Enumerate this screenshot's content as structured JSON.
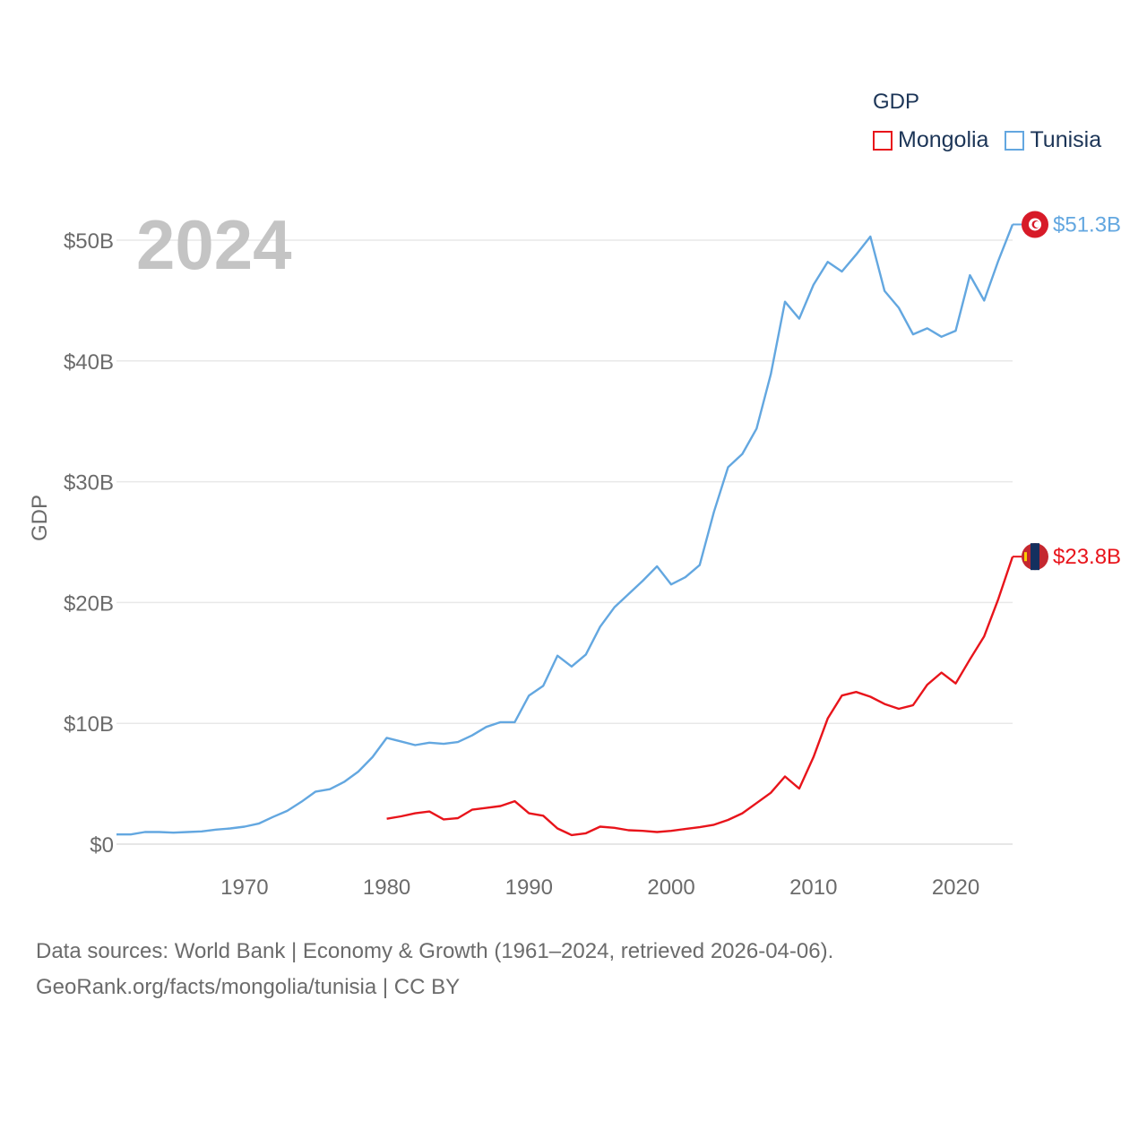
{
  "legend": {
    "title": "GDP",
    "items": [
      {
        "label": "Mongolia",
        "color": "#e8141b"
      },
      {
        "label": "Tunisia",
        "color": "#63a7e0"
      }
    ]
  },
  "current_year": "2024",
  "footer": {
    "line1": "Data sources: World Bank | Economy & Growth (1961–2024, retrieved 2026-04-06).",
    "line2": "GeoRank.org/facts/mongolia/tunisia | CC BY"
  },
  "chart_data": {
    "type": "line",
    "ylabel": "GDP",
    "xlabel": "",
    "xlim": [
      1961,
      2024
    ],
    "ylim": [
      0,
      50
    ],
    "y_unit": "billion USD",
    "x_ticks": [
      "1970",
      "1980",
      "1990",
      "2000",
      "2010",
      "2020"
    ],
    "y_ticks": [
      "$0",
      "$10B",
      "$20B",
      "$30B",
      "$40B",
      "$50B"
    ],
    "grid": true,
    "legend_position": "top-right",
    "series": [
      {
        "name": "Tunisia",
        "color": "#63a7e0",
        "end_label": "$51.3B",
        "x": [
          1961,
          1962,
          1963,
          1964,
          1965,
          1966,
          1967,
          1968,
          1969,
          1970,
          1971,
          1972,
          1973,
          1974,
          1975,
          1976,
          1977,
          1978,
          1979,
          1980,
          1981,
          1982,
          1983,
          1984,
          1985,
          1986,
          1987,
          1988,
          1989,
          1990,
          1991,
          1992,
          1993,
          1994,
          1995,
          1996,
          1997,
          1998,
          1999,
          2000,
          2001,
          2002,
          2003,
          2004,
          2005,
          2006,
          2007,
          2008,
          2009,
          2010,
          2011,
          2012,
          2013,
          2014,
          2015,
          2016,
          2017,
          2018,
          2019,
          2020,
          2021,
          2022,
          2023,
          2024
        ],
        "values": [
          0.8,
          0.8,
          1.0,
          1.0,
          0.95,
          1.0,
          1.05,
          1.2,
          1.3,
          1.45,
          1.7,
          2.25,
          2.75,
          3.5,
          4.35,
          4.55,
          5.15,
          6.0,
          7.2,
          8.8,
          8.5,
          8.2,
          8.4,
          8.3,
          8.45,
          9.0,
          9.7,
          10.1,
          10.1,
          12.3,
          13.1,
          15.6,
          14.7,
          15.7,
          18.0,
          19.6,
          20.7,
          21.8,
          23.0,
          21.5,
          22.1,
          23.1,
          27.5,
          31.2,
          32.3,
          34.4,
          38.9,
          44.9,
          43.5,
          46.3,
          48.2,
          47.4,
          48.8,
          50.3,
          45.8,
          44.4,
          42.2,
          42.7,
          42.0,
          42.5,
          47.1,
          45.0,
          48.3,
          51.3
        ]
      },
      {
        "name": "Mongolia",
        "color": "#e8141b",
        "end_label": "$23.8B",
        "x": [
          1980,
          1981,
          1982,
          1983,
          1984,
          1985,
          1986,
          1987,
          1988,
          1989,
          1990,
          1991,
          1992,
          1993,
          1994,
          1995,
          1996,
          1997,
          1998,
          1999,
          2000,
          2001,
          2002,
          2003,
          2004,
          2005,
          2006,
          2007,
          2008,
          2009,
          2010,
          2011,
          2012,
          2013,
          2014,
          2015,
          2016,
          2017,
          2018,
          2019,
          2020,
          2021,
          2022,
          2023,
          2024
        ],
        "values": [
          2.1,
          2.3,
          2.55,
          2.7,
          2.05,
          2.15,
          2.85,
          3.0,
          3.15,
          3.55,
          2.55,
          2.35,
          1.3,
          0.75,
          0.9,
          1.45,
          1.35,
          1.15,
          1.1,
          1.0,
          1.1,
          1.25,
          1.4,
          1.6,
          2.0,
          2.55,
          3.4,
          4.25,
          5.6,
          4.6,
          7.2,
          10.4,
          12.3,
          12.6,
          12.2,
          11.6,
          11.2,
          11.5,
          13.2,
          14.2,
          13.3,
          15.3,
          17.2,
          20.3,
          23.8
        ]
      }
    ]
  }
}
